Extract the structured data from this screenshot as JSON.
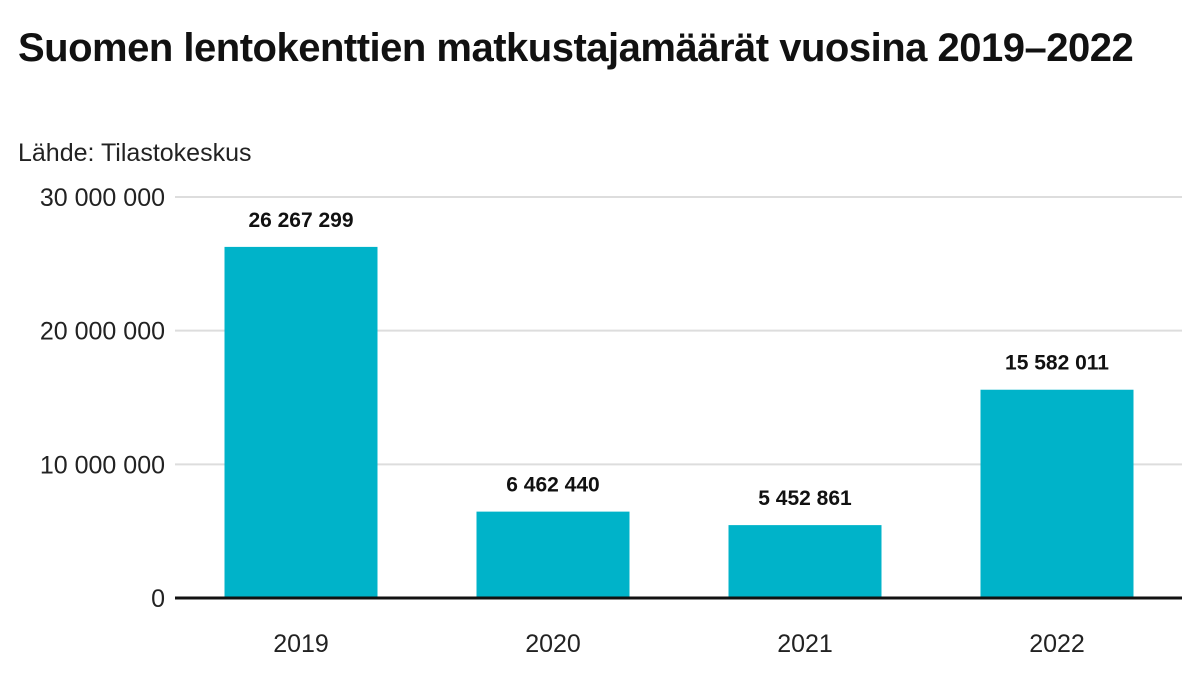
{
  "title": "Suomen lentokenttien matkustajamäärät vuosina 2019–2022",
  "source": "Lähde: Tilastokeskus",
  "chart_data": {
    "type": "bar",
    "title": "Suomen lentokenttien matkustajamäärät vuosina 2019–2022",
    "subtitle": "Lähde: Tilastokeskus",
    "categories": [
      "2019",
      "2020",
      "2021",
      "2022"
    ],
    "values": [
      26267299,
      6462440,
      5452861,
      15582011
    ],
    "value_labels": [
      "26 267 299",
      "6 462 440",
      "5 452 861",
      "15 582 011"
    ],
    "xlabel": "",
    "ylabel": "",
    "ylim": [
      0,
      30000000
    ],
    "y_ticks": [
      0,
      10000000,
      20000000,
      30000000
    ],
    "y_tick_labels": [
      "0",
      "10 000 000",
      "20 000 000",
      "30 000 000"
    ],
    "grid": true,
    "legend": "none",
    "bar_color": "#00b3c9",
    "grid_color": "#dddddd",
    "axis_color": "#111111"
  }
}
